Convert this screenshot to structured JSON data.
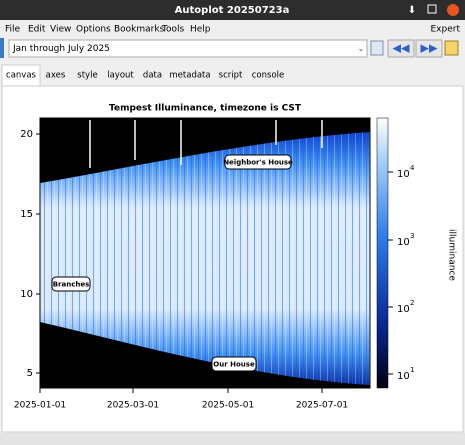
{
  "window": {
    "title": "Autoplot 20250723a"
  },
  "menu": {
    "items": [
      "File",
      "Edit",
      "View",
      "Options",
      "Bookmarks",
      "Tools",
      "Help"
    ],
    "right": "Expert"
  },
  "toolbar": {
    "range": "Jan through July 2025"
  },
  "tabs": [
    "canvas",
    "axes",
    "style",
    "layout",
    "data",
    "metadata",
    "script",
    "console"
  ],
  "plot": {
    "title": "Tempest Illuminance, timezone is CST",
    "yticks": [
      "5",
      "10",
      "15",
      "20"
    ],
    "xticks": [
      "2025-01-01",
      "2025-03-01",
      "2025-05-01",
      "2025-07-01"
    ],
    "colorbar": {
      "label": "illuminance",
      "ticks": [
        {
          "base": "10",
          "exp": "1"
        },
        {
          "base": "10",
          "exp": "2"
        },
        {
          "base": "10",
          "exp": "3"
        },
        {
          "base": "10",
          "exp": "4"
        }
      ]
    },
    "annotations": [
      "Neighbor's House",
      "Branches",
      "Our House"
    ]
  }
}
